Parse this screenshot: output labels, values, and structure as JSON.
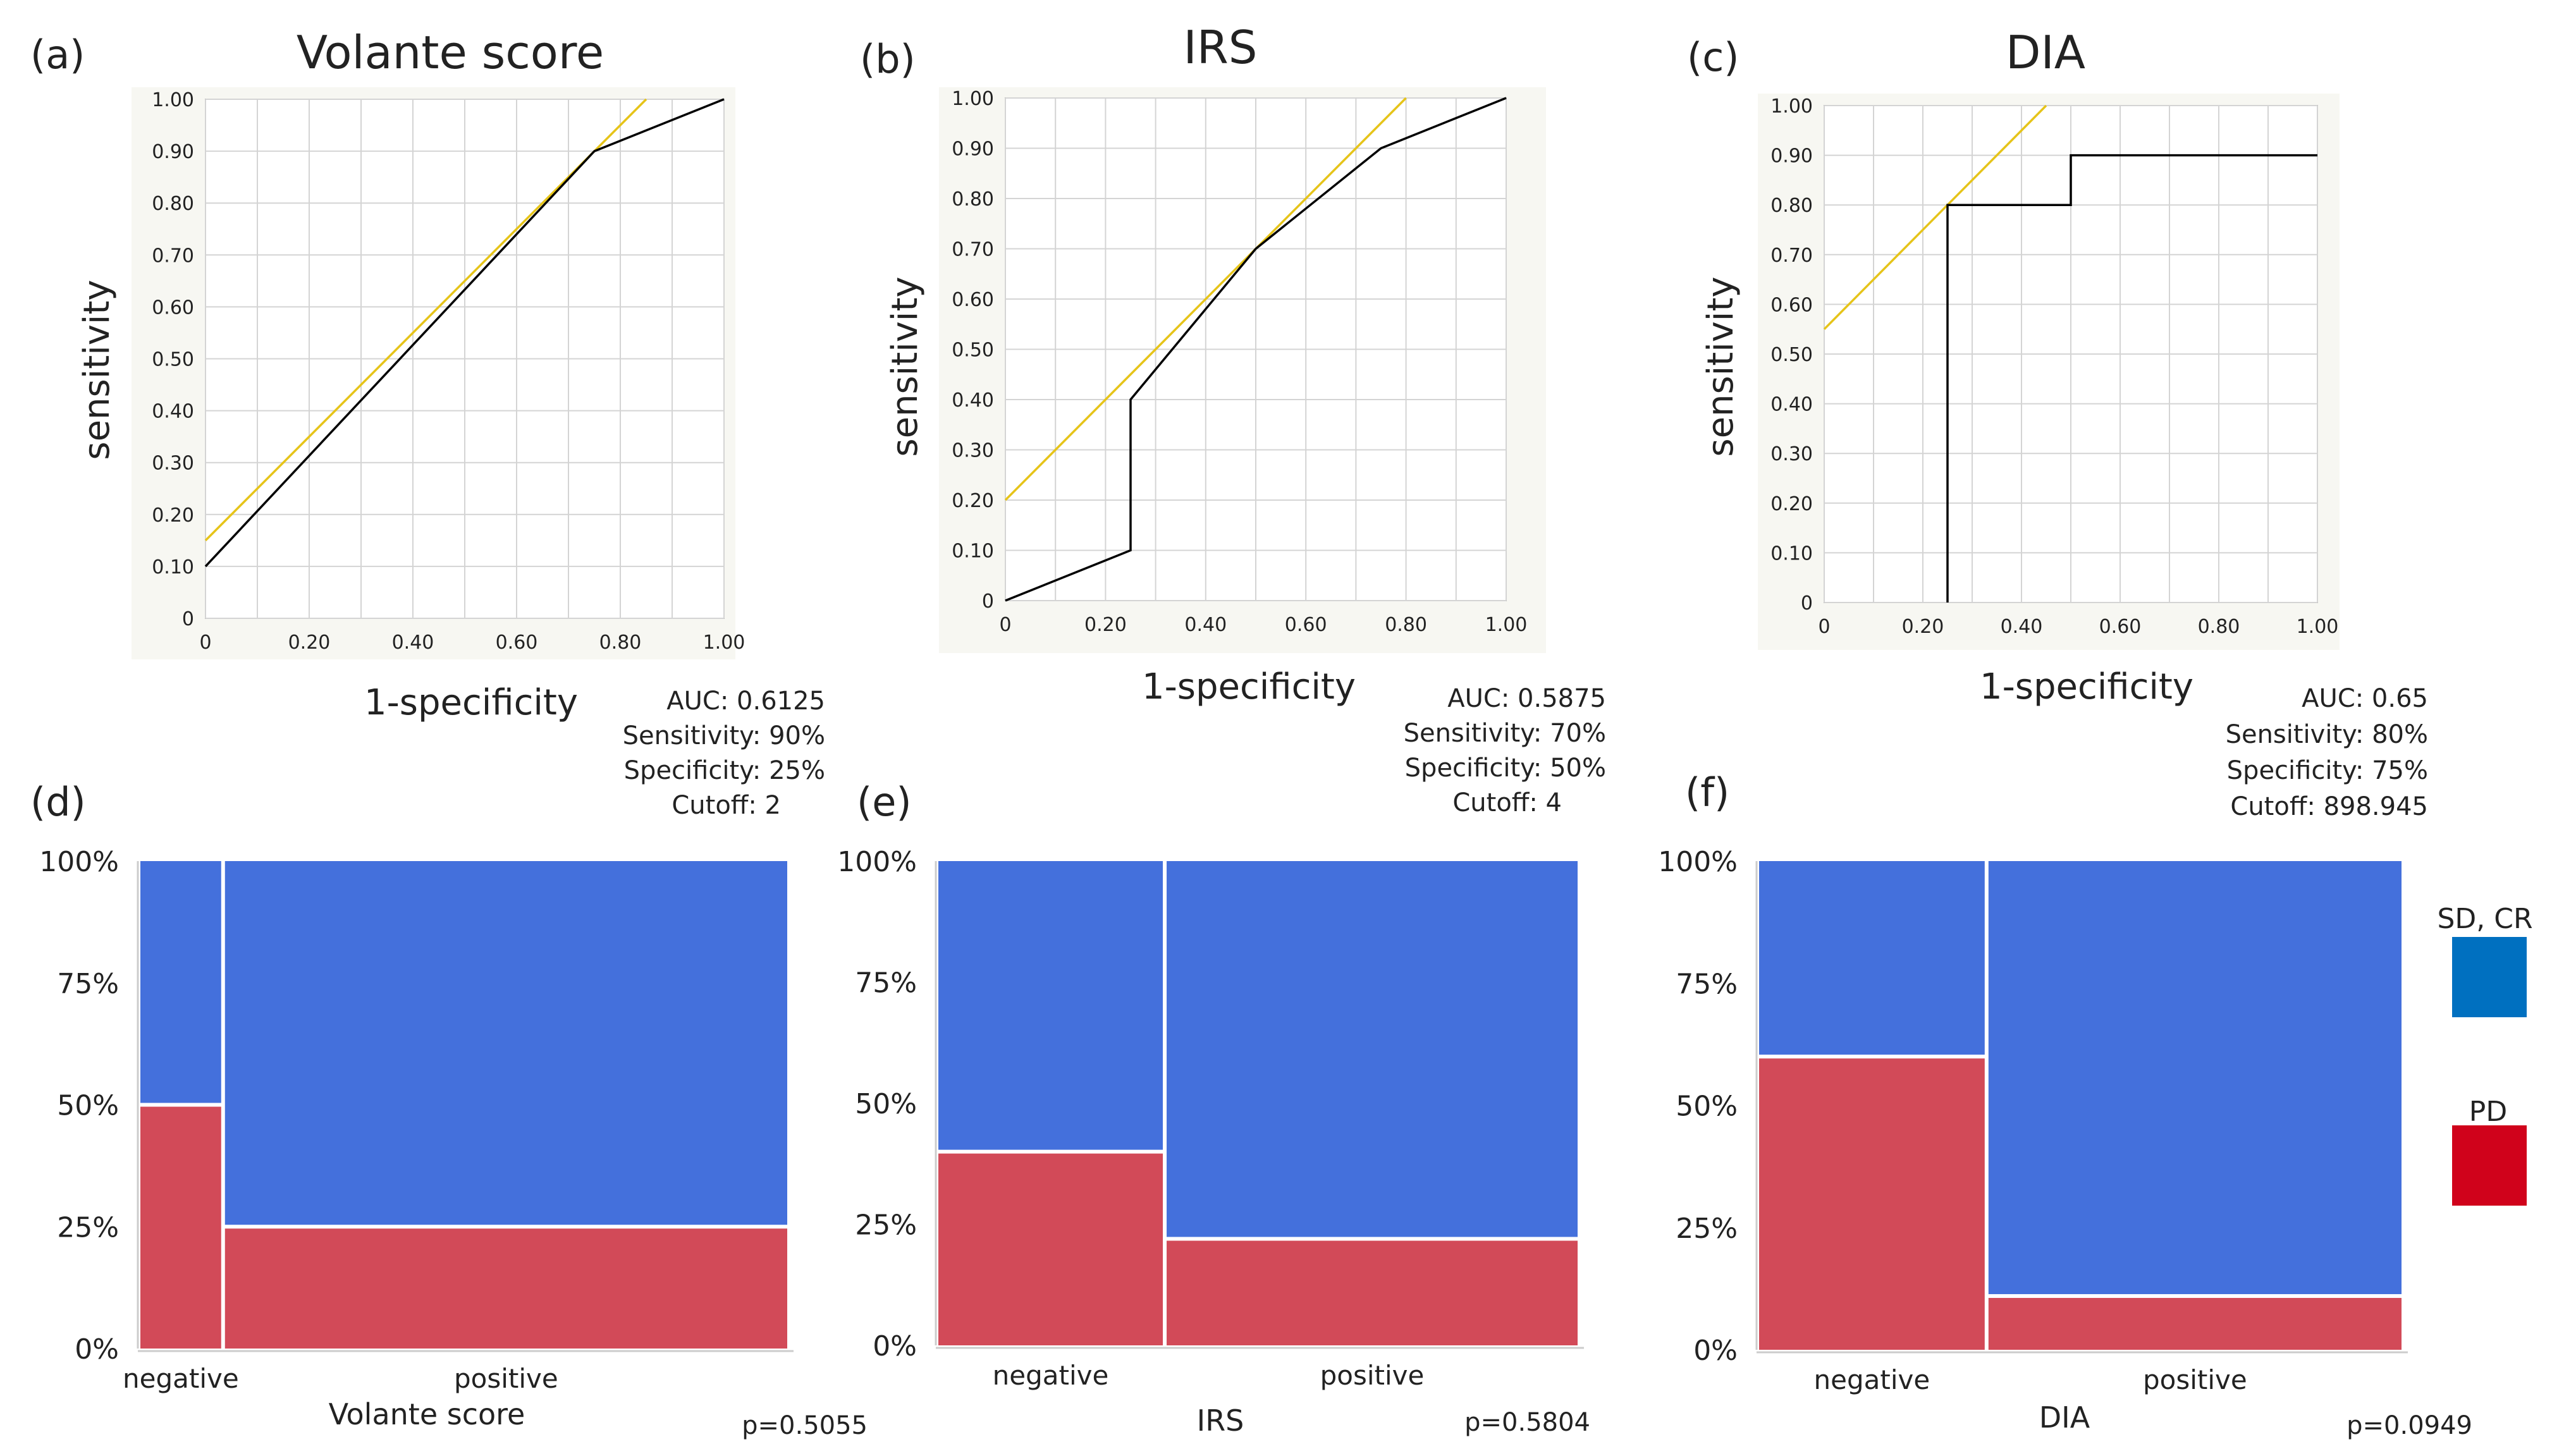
{
  "panels": {
    "a": {
      "letter": "(a)",
      "title": "Volante score"
    },
    "b": {
      "letter": "(b)",
      "title": "IRS"
    },
    "c": {
      "letter": "(c)",
      "title": "DIA"
    },
    "d": {
      "letter": "(d)"
    },
    "e": {
      "letter": "(e)"
    },
    "f": {
      "letter": "(f)"
    }
  },
  "colors": {
    "roc_line": "#000000",
    "tangent_line": "#E6C419",
    "grid": "#d4d4d4",
    "plot_bg": "#ffffff",
    "frame_bg": "#f7f7f2",
    "pd": "#D24A58",
    "sdcr": "#4470DC",
    "legend_sdcr": "#0070C0",
    "legend_pd": "#D0021B"
  },
  "legend": {
    "items": [
      {
        "label": "SD, CR",
        "color": "#0070C0"
      },
      {
        "label": "PD",
        "color": "#D0021B"
      }
    ]
  },
  "chart_data": [
    {
      "type": "line",
      "id": "a",
      "title": "Volante score",
      "xlabel": "1-specificity",
      "ylabel": "sensitivity",
      "xlim": [
        0,
        1
      ],
      "ylim": [
        0,
        1
      ],
      "x_ticks": [
        "0",
        "0.20",
        "0.40",
        "0.60",
        "0.80",
        "1.00"
      ],
      "y_ticks": [
        "0",
        "0.10",
        "0.20",
        "0.30",
        "0.40",
        "0.50",
        "0.60",
        "0.70",
        "0.80",
        "0.90",
        "1.00"
      ],
      "grid": true,
      "roc": [
        [
          0,
          0.1
        ],
        [
          0.75,
          0.9
        ],
        [
          1,
          1
        ]
      ],
      "tangent": [
        [
          0,
          0.15
        ],
        [
          0.85,
          1.0
        ]
      ],
      "stats": [
        "AUC: 0.6125",
        "Sensitivity: 90%",
        "Specificity: 25%",
        "Cutoff: 2"
      ]
    },
    {
      "type": "line",
      "id": "b",
      "title": "IRS",
      "xlabel": "1-specificity",
      "ylabel": "sensitivity",
      "xlim": [
        0,
        1
      ],
      "ylim": [
        0,
        1
      ],
      "x_ticks": [
        "0",
        "0.20",
        "0.40",
        "0.60",
        "0.80",
        "1.00"
      ],
      "y_ticks": [
        "0",
        "0.10",
        "0.20",
        "0.30",
        "0.40",
        "0.50",
        "0.60",
        "0.70",
        "0.80",
        "0.90",
        "1.00"
      ],
      "grid": true,
      "roc": [
        [
          0,
          0
        ],
        [
          0.25,
          0.1
        ],
        [
          0.25,
          0.4
        ],
        [
          0.5,
          0.7
        ],
        [
          0.75,
          0.9
        ],
        [
          1,
          1
        ]
      ],
      "tangent": [
        [
          0,
          0.2
        ],
        [
          0.8,
          1.0
        ]
      ],
      "stats": [
        "AUC: 0.5875",
        "Sensitivity: 70%",
        "Specificity: 50%",
        "Cutoff: 4"
      ]
    },
    {
      "type": "line",
      "id": "c",
      "title": "DIA",
      "xlabel": "1-specificity",
      "ylabel": "sensitivity",
      "xlim": [
        0,
        1
      ],
      "ylim": [
        0,
        1
      ],
      "x_ticks": [
        "0",
        "0.20",
        "0.40",
        "0.60",
        "0.80",
        "1.00"
      ],
      "y_ticks": [
        "0",
        "0.10",
        "0.20",
        "0.30",
        "0.40",
        "0.50",
        "0.60",
        "0.70",
        "0.80",
        "0.90",
        "1.00"
      ],
      "grid": true,
      "roc": [
        [
          0.25,
          0
        ],
        [
          0.25,
          0.8
        ],
        [
          0.5,
          0.8
        ],
        [
          0.5,
          0.9
        ],
        [
          1,
          0.9
        ]
      ],
      "tangent": [
        [
          0,
          0.55
        ],
        [
          0.45,
          1.0
        ]
      ],
      "stats": [
        "AUC: 0.65",
        "Sensitivity: 80%",
        "Specificity: 75%",
        "Cutoff: 898.945"
      ]
    },
    {
      "type": "mosaic",
      "id": "d",
      "xlabel": "Volante score",
      "y_ticks": [
        "0%",
        "25%",
        "50%",
        "75%",
        "100%"
      ],
      "categories": [
        "negative",
        "positive"
      ],
      "widths": [
        0.13,
        0.87
      ],
      "pd_fraction": [
        0.5,
        0.25
      ],
      "p_value": "p=0.5055"
    },
    {
      "type": "mosaic",
      "id": "e",
      "xlabel": "IRS",
      "y_ticks": [
        "0%",
        "25%",
        "50%",
        "75%",
        "100%"
      ],
      "categories": [
        "negative",
        "positive"
      ],
      "widths": [
        0.355,
        0.645
      ],
      "pd_fraction": [
        0.4,
        0.22
      ],
      "p_value": "p=0.5804"
    },
    {
      "type": "mosaic",
      "id": "f",
      "xlabel": "DIA",
      "y_ticks": [
        "0%",
        "25%",
        "50%",
        "75%",
        "100%"
      ],
      "categories": [
        "negative",
        "positive"
      ],
      "widths": [
        0.355,
        0.645
      ],
      "pd_fraction": [
        0.6,
        0.11
      ],
      "p_value": "p=0.0949"
    }
  ]
}
